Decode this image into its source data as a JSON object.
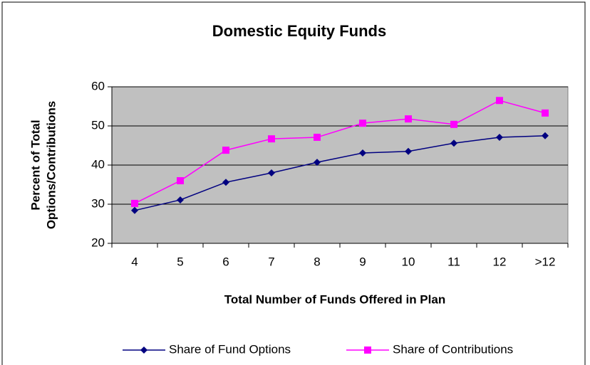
{
  "chart_data": {
    "type": "line",
    "title": "Domestic Equity Funds",
    "x_label": "Total Number of Funds Offered in Plan",
    "y_label": [
      "Percent of Total",
      "Options/Contributions"
    ],
    "categories": [
      "4",
      "5",
      "6",
      "7",
      "8",
      "9",
      "10",
      "11",
      "12",
      ">12"
    ],
    "series": [
      {
        "name": "Share of Fund Options",
        "color": "#000080",
        "marker": "diamond",
        "values": [
          28.4,
          31.1,
          35.6,
          38.0,
          40.7,
          43.1,
          43.5,
          45.6,
          47.1,
          47.5
        ]
      },
      {
        "name": "Share of Contributions",
        "color": "#ff00ff",
        "marker": "square",
        "values": [
          30.2,
          36.0,
          43.8,
          46.7,
          47.1,
          50.7,
          51.8,
          50.4,
          56.5,
          53.3
        ]
      }
    ],
    "ylim": [
      20,
      60
    ],
    "yticks": [
      20,
      30,
      40,
      50,
      60
    ],
    "grid": true,
    "legend": "bottom",
    "plot_background": "#c0c0c0"
  }
}
